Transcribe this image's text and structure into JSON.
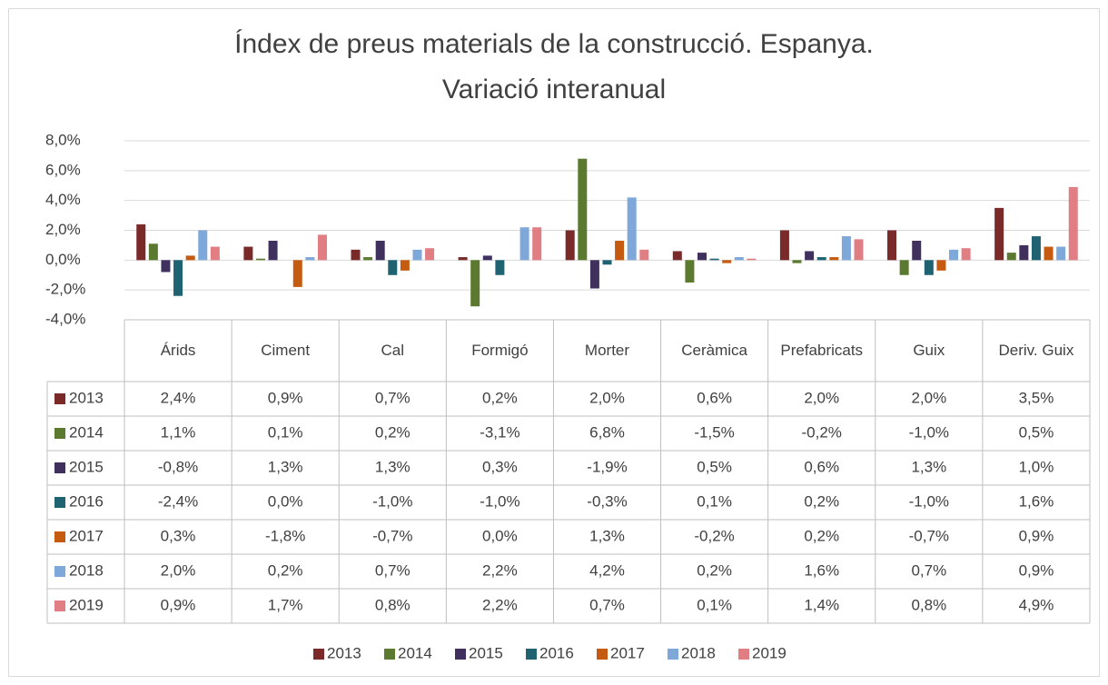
{
  "chart_data": {
    "type": "bar",
    "title": [
      "Índex de preus materials de la construcció. Espanya.",
      "Variació interanual"
    ],
    "categories": [
      "Árids",
      "Ciment",
      "Cal",
      "Formigó",
      "Morter",
      "Ceràmica",
      "Prefabricats",
      "Guix",
      "Deriv. Guix"
    ],
    "ylim": [
      -4,
      8
    ],
    "yticks": [
      {
        "value": -4,
        "label": "-4,0%"
      },
      {
        "value": -2,
        "label": "-2,0%"
      },
      {
        "value": 0,
        "label": "0,0%"
      },
      {
        "value": 2,
        "label": "2,0%"
      },
      {
        "value": 4,
        "label": "4,0%"
      },
      {
        "value": 6,
        "label": "6,0%"
      },
      {
        "value": 8,
        "label": "8,0%"
      }
    ],
    "grid": true,
    "legend": "bottom",
    "series": [
      {
        "name": "2013",
        "color": "#7b2a2a",
        "values": [
          2.4,
          0.9,
          0.7,
          0.2,
          2.0,
          0.6,
          2.0,
          2.0,
          3.5
        ],
        "value_labels": [
          "2,4%",
          "0,9%",
          "0,7%",
          "0,2%",
          "2,0%",
          "0,6%",
          "2,0%",
          "2,0%",
          "3,5%"
        ]
      },
      {
        "name": "2014",
        "color": "#5b7a2f",
        "values": [
          1.1,
          0.1,
          0.2,
          -3.1,
          6.8,
          -1.5,
          -0.2,
          -1.0,
          0.5
        ],
        "value_labels": [
          "1,1%",
          "0,1%",
          "0,2%",
          "-3,1%",
          "6,8%",
          "-1,5%",
          "-0,2%",
          "-1,0%",
          "0,5%"
        ]
      },
      {
        "name": "2015",
        "color": "#40305e",
        "values": [
          -0.8,
          1.3,
          1.3,
          0.3,
          -1.9,
          0.5,
          0.6,
          1.3,
          1.0
        ],
        "value_labels": [
          "-0,8%",
          "1,3%",
          "1,3%",
          "0,3%",
          "-1,9%",
          "0,5%",
          "0,6%",
          "1,3%",
          "1,0%"
        ]
      },
      {
        "name": "2016",
        "color": "#1f6272",
        "values": [
          -2.4,
          0.0,
          -1.0,
          -1.0,
          -0.3,
          0.1,
          0.2,
          -1.0,
          1.6
        ],
        "value_labels": [
          "-2,4%",
          "0,0%",
          "-1,0%",
          "-1,0%",
          "-0,3%",
          "0,1%",
          "0,2%",
          "-1,0%",
          "1,6%"
        ]
      },
      {
        "name": "2017",
        "color": "#c55a11",
        "values": [
          0.3,
          -1.8,
          -0.7,
          0.0,
          1.3,
          -0.2,
          0.2,
          -0.7,
          0.9
        ],
        "value_labels": [
          "0,3%",
          "-1,8%",
          "-0,7%",
          "0,0%",
          "1,3%",
          "-0,2%",
          "0,2%",
          "-0,7%",
          "0,9%"
        ]
      },
      {
        "name": "2018",
        "color": "#7ea7da",
        "values": [
          2.0,
          0.2,
          0.7,
          2.2,
          4.2,
          0.2,
          1.6,
          0.7,
          0.9
        ],
        "value_labels": [
          "2,0%",
          "0,2%",
          "0,7%",
          "2,2%",
          "4,2%",
          "0,2%",
          "1,6%",
          "0,7%",
          "0,9%"
        ]
      },
      {
        "name": "2019",
        "color": "#e07e84",
        "values": [
          0.9,
          1.7,
          0.8,
          2.2,
          0.7,
          0.1,
          1.4,
          0.8,
          4.9
        ],
        "value_labels": [
          "0,9%",
          "1,7%",
          "0,8%",
          "2,2%",
          "0,7%",
          "0,1%",
          "1,4%",
          "0,8%",
          "4,9%"
        ]
      }
    ]
  }
}
